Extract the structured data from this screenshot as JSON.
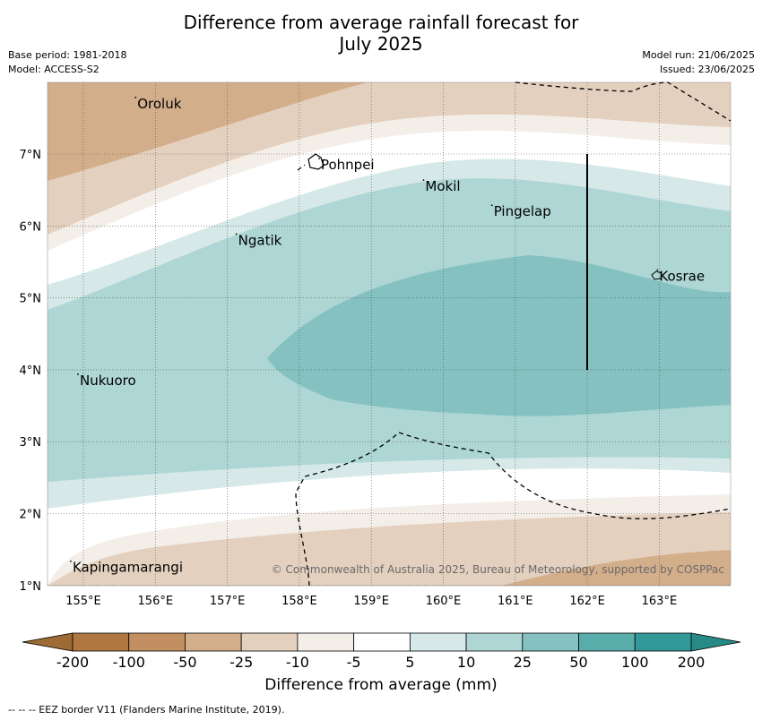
{
  "title_line1": "Difference from average rainfall forecast for",
  "title_line2": "July 2025",
  "meta_left": [
    "Base period: 1981-2018",
    "Model: ACCESS-S2"
  ],
  "meta_right": [
    "Model run: 21/06/2025",
    "Issued: 23/06/2025"
  ],
  "map": {
    "lon_ticks": [
      "155°E",
      "156°E",
      "157°E",
      "158°E",
      "159°E",
      "160°E",
      "161°E",
      "162°E",
      "163°E"
    ],
    "lat_ticks": [
      "7°N",
      "6°N",
      "5°N",
      "4°N",
      "3°N",
      "2°N",
      "1°N"
    ],
    "places": [
      {
        "name": "Oroluk",
        "lon": 155.75,
        "lat": 7.7
      },
      {
        "name": "Pohnpei",
        "lon": 158.3,
        "lat": 6.85
      },
      {
        "name": "Mokil",
        "lon": 159.75,
        "lat": 6.55
      },
      {
        "name": "Pingelap",
        "lon": 160.7,
        "lat": 6.2
      },
      {
        "name": "Ngatik",
        "lon": 157.15,
        "lat": 5.8
      },
      {
        "name": "Kosrae",
        "lon": 163.0,
        "lat": 5.3
      },
      {
        "name": "Nukuoro",
        "lon": 154.95,
        "lat": 3.85
      },
      {
        "name": "Kapingamarangi",
        "lon": 154.85,
        "lat": 1.25
      }
    ],
    "copyright": "© Commonwealth of Australia 2025, Bureau of Meteorology, supported by COSPPac"
  },
  "legend": {
    "title": "Difference from average (mm)",
    "ticks": [
      "-200",
      "-100",
      "-50",
      "-25",
      "-10",
      "-5",
      "5",
      "10",
      "25",
      "50",
      "100",
      "200"
    ],
    "colors": [
      "#b07840",
      "#c29060",
      "#d3ae8b",
      "#e4d0be",
      "#f4eee8",
      "#ffffff",
      "#d6e8e8",
      "#add6d5",
      "#84c1c0",
      "#58aca9",
      "#32999a"
    ],
    "extend_low": "#9e6a35",
    "extend_high": "#278a86"
  },
  "footnote": "--  --  -- EEZ border V11 (Flanders Marine Institute, 2019)."
}
